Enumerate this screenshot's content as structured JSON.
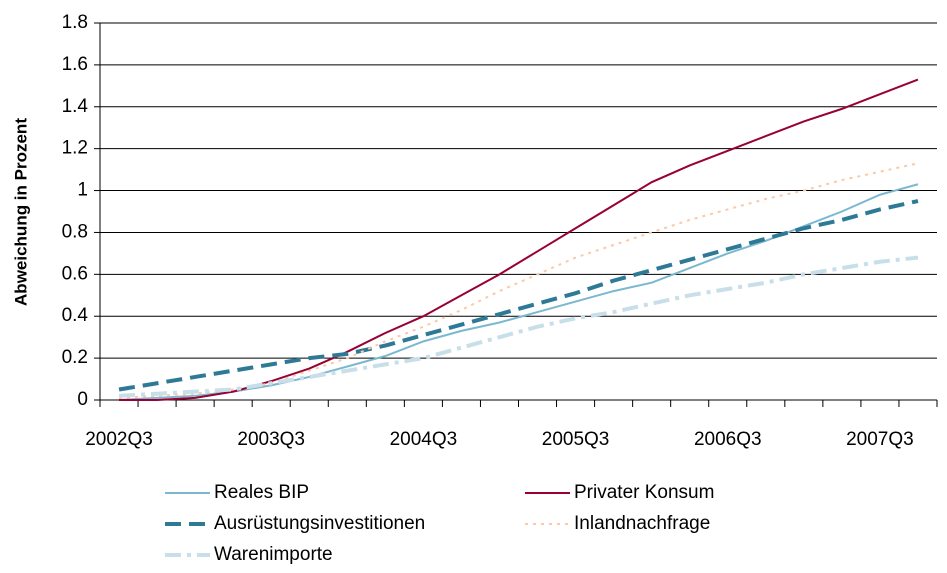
{
  "chart_data": {
    "type": "line",
    "ylabel": "Abweichung in Prozent",
    "categories": [
      "2002Q3",
      null,
      null,
      null,
      "2003Q3",
      null,
      null,
      null,
      "2004Q3",
      null,
      null,
      null,
      "2005Q3",
      null,
      null,
      null,
      "2006Q3",
      null,
      null,
      null,
      "2007Q3",
      null
    ],
    "ylim": [
      0,
      1.8
    ],
    "yticks": [
      0,
      0.2,
      0.4,
      0.6,
      0.8,
      1,
      1.2,
      1.4,
      1.6,
      1.8
    ],
    "grid": true,
    "series": [
      {
        "name": "Reales BIP",
        "color": "#7bb8d0",
        "style": "solid",
        "values": [
          0,
          0.01,
          0.02,
          0.04,
          0.07,
          0.11,
          0.16,
          0.21,
          0.28,
          0.33,
          0.37,
          0.42,
          0.47,
          0.52,
          0.56,
          0.63,
          0.7,
          0.76,
          0.83,
          0.9,
          0.98,
          1.03
        ]
      },
      {
        "name": "Privater Konsum",
        "color": "#990033",
        "style": "solid",
        "values": [
          0,
          0,
          0.01,
          0.04,
          0.09,
          0.15,
          0.23,
          0.32,
          0.4,
          0.5,
          0.6,
          0.71,
          0.82,
          0.93,
          1.04,
          1.12,
          1.19,
          1.26,
          1.33,
          1.39,
          1.46,
          1.53
        ]
      },
      {
        "name": "Ausrüstungsinvestitionen",
        "color": "#2e7a96",
        "style": "dash",
        "values": [
          0.05,
          0.08,
          0.11,
          0.14,
          0.17,
          0.2,
          0.22,
          0.26,
          0.31,
          0.36,
          0.41,
          0.46,
          0.51,
          0.57,
          0.62,
          0.67,
          0.72,
          0.77,
          0.82,
          0.86,
          0.91,
          0.95
        ]
      },
      {
        "name": "Inlandnachfrage",
        "color": "#fbc8a8",
        "style": "dot",
        "values": [
          0.01,
          0.02,
          0.03,
          0.05,
          0.08,
          0.14,
          0.2,
          0.28,
          0.35,
          0.43,
          0.52,
          0.6,
          0.68,
          0.74,
          0.8,
          0.86,
          0.91,
          0.96,
          1.0,
          1.05,
          1.09,
          1.13
        ]
      },
      {
        "name": "Warenimporte",
        "color": "#c8dfea",
        "style": "dashdot",
        "values": [
          0.02,
          0.03,
          0.04,
          0.05,
          0.08,
          0.11,
          0.14,
          0.17,
          0.2,
          0.25,
          0.3,
          0.35,
          0.39,
          0.42,
          0.46,
          0.5,
          0.53,
          0.56,
          0.6,
          0.63,
          0.66,
          0.68
        ]
      }
    ]
  }
}
